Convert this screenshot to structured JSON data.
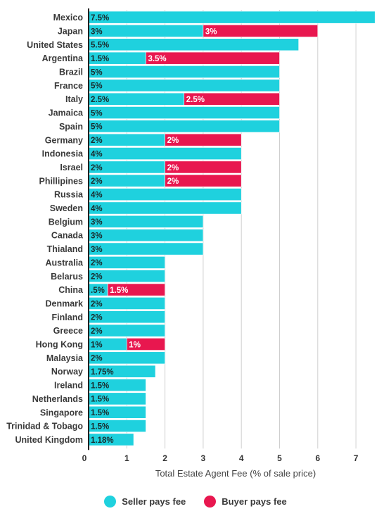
{
  "colors": {
    "seller": "#1fd1de",
    "buyer": "#e8174f",
    "grid": "#cfcfcf",
    "axis": "#222222"
  },
  "chart_data": {
    "type": "bar",
    "orientation": "horizontal",
    "stacked": true,
    "xlabel": "Total Estate Agent Fee (% of sale price)",
    "xlim": [
      0,
      7.5
    ],
    "x_ticks": [
      "0",
      "1",
      "2",
      "3",
      "4",
      "5",
      "6",
      "7"
    ],
    "grid": true,
    "legend_position": "bottom",
    "categories": [
      "Mexico",
      "Japan",
      "United States",
      "Argentina",
      "Brazil",
      "France",
      "Italy",
      "Jamaica",
      "Spain",
      "Germany",
      "Indonesia",
      "Israel",
      "Phillipines",
      "Russia",
      "Sweden",
      "Belgium",
      "Canada",
      "Thialand",
      "Australia",
      "Belarus",
      "China",
      "Denmark",
      "Finland",
      "Greece",
      "Hong Kong",
      "Malaysia",
      "Norway",
      "Ireland",
      "Netherlands",
      "Singapore",
      "Trinidad & Tobago",
      "United Kingdom"
    ],
    "series": [
      {
        "name": "Seller pays fee",
        "values": [
          7.5,
          3,
          5.5,
          1.5,
          5,
          5,
          2.5,
          5,
          5,
          2,
          4,
          2,
          2,
          4,
          4,
          3,
          3,
          3,
          2,
          2,
          0.5,
          2,
          2,
          2,
          1,
          2,
          1.75,
          1.5,
          1.5,
          1.5,
          1.5,
          1.18
        ],
        "labels": [
          "7.5%",
          "3%",
          "5.5%",
          "1.5%",
          "5%",
          "5%",
          "2.5%",
          "5%",
          "5%",
          "2%",
          "4%",
          "2%",
          "2%",
          "4%",
          "4%",
          "3%",
          "3%",
          "3%",
          "2%",
          "2%",
          ".5%",
          "2%",
          "2%",
          "2%",
          "1%",
          "2%",
          "1.75%",
          "1.5%",
          "1.5%",
          "1.5%",
          "1.5%",
          "1.18%"
        ]
      },
      {
        "name": "Buyer pays fee",
        "values": [
          0,
          3,
          0,
          3.5,
          0,
          0,
          2.5,
          0,
          0,
          2,
          0,
          2,
          2,
          0,
          0,
          0,
          0,
          0,
          0,
          0,
          1.5,
          0,
          0,
          0,
          1,
          0,
          0,
          0,
          0,
          0,
          0,
          0
        ],
        "labels": [
          "",
          "3%",
          "",
          "3.5%",
          "",
          "",
          "2.5%",
          "",
          "",
          "2%",
          "",
          "2%",
          "2%",
          "",
          "",
          "",
          "",
          "",
          "",
          "",
          "1.5%",
          "",
          "",
          "",
          "1%",
          "",
          "",
          "",
          "",
          "",
          "",
          ""
        ]
      }
    ]
  }
}
